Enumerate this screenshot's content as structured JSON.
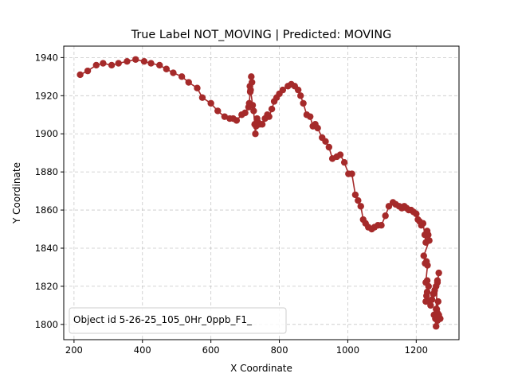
{
  "chart_data": {
    "type": "line",
    "title": "True Label NOT_MOVING | Predicted: MOVING",
    "xlabel": "X Coordinate",
    "ylabel": "Y Coordinate",
    "xlim": [
      170,
      1325
    ],
    "ylim": [
      1792,
      1946
    ],
    "xticks": [
      200,
      400,
      600,
      800,
      1000,
      1200
    ],
    "yticks": [
      1800,
      1820,
      1840,
      1860,
      1880,
      1900,
      1920,
      1940
    ],
    "grid": true,
    "line_color": "#a52a2a",
    "legend_text": "Object id 5-26-25_105_0Hr_0ppb_F1_",
    "legend_position": "lower-left",
    "series": [
      {
        "x": [
          218,
          240,
          265,
          285,
          310,
          330,
          355,
          380,
          405,
          425,
          450,
          470,
          490,
          515,
          535,
          560,
          575,
          600,
          620,
          640,
          655,
          665,
          675,
          690,
          700,
          710,
          712,
          715,
          714,
          718,
          720,
          716,
          722,
          725,
          728,
          730,
          732,
          735,
          738,
          742,
          750,
          758,
          765,
          770,
          778,
          785,
          792,
          800,
          810,
          825,
          835,
          845,
          855,
          862,
          870,
          880,
          890,
          898,
          905,
          912,
          925,
          935,
          945,
          955,
          968,
          978,
          990,
          1002,
          1012,
          1022,
          1030,
          1038,
          1045,
          1052,
          1060,
          1070,
          1078,
          1088,
          1098,
          1110,
          1120,
          1132,
          1140,
          1150,
          1158,
          1165,
          1172,
          1178,
          1185,
          1192,
          1200,
          1205,
          1210,
          1215,
          1220,
          1225,
          1228,
          1232,
          1235,
          1238,
          1222,
          1226,
          1230,
          1233,
          1228,
          1232,
          1236,
          1230,
          1228,
          1232,
          1238,
          1242,
          1246,
          1250,
          1254,
          1258,
          1262,
          1266,
          1262,
          1258,
          1255,
          1252,
          1256,
          1260,
          1264,
          1262,
          1266,
          1270,
          1262,
          1258,
          1262,
          1266
        ],
        "y": [
          1931,
          1933,
          1936,
          1937,
          1936,
          1937,
          1938,
          1939,
          1938,
          1937,
          1936,
          1934,
          1932,
          1930,
          1927,
          1924,
          1919,
          1916,
          1912,
          1909,
          1908,
          1908,
          1907,
          1910,
          1911,
          1914,
          1916,
          1922,
          1925,
          1930,
          1927,
          1923,
          1915,
          1912,
          1905,
          1900,
          1904,
          1908,
          1906,
          1905,
          1905,
          1908,
          1910,
          1909,
          1913,
          1917,
          1919,
          1921,
          1923,
          1925,
          1926,
          1925,
          1923,
          1920,
          1916,
          1910,
          1909,
          1904,
          1905,
          1903,
          1898,
          1896,
          1893,
          1887,
          1888,
          1889,
          1885,
          1879,
          1879,
          1868,
          1865,
          1862,
          1855,
          1853,
          1851,
          1850,
          1851,
          1852,
          1852,
          1857,
          1862,
          1864,
          1863,
          1862,
          1861,
          1862,
          1861,
          1860,
          1860,
          1859,
          1858,
          1855,
          1854,
          1852,
          1853,
          1847,
          1843,
          1849,
          1847,
          1844,
          1836,
          1832,
          1833,
          1831,
          1822,
          1823,
          1820,
          1815,
          1812,
          1817,
          1812,
          1810,
          1813,
          1816,
          1818,
          1820,
          1823,
          1827,
          1822,
          1808,
          1805,
          1805,
          1803,
          1808,
          1812,
          1806,
          1805,
          1803,
          1804,
          1799,
          1802,
          1804
        ]
      }
    ]
  }
}
